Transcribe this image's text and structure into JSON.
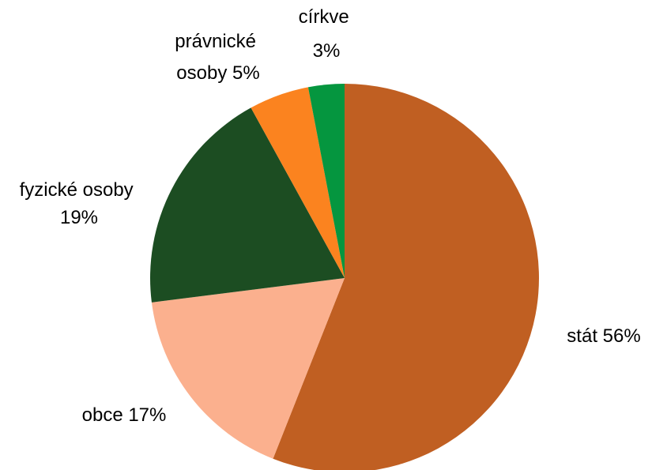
{
  "chart_data": {
    "type": "pie",
    "start_angle_deg": 0,
    "direction": "clockwise",
    "slices": [
      {
        "name": "stát",
        "value": 56,
        "color": "#C05F22",
        "label_lines": [
          "stát 56%"
        ]
      },
      {
        "name": "obce",
        "value": 17,
        "color": "#FBB08E",
        "label_lines": [
          "obce 17%"
        ]
      },
      {
        "name": "fyzické osoby",
        "value": 19,
        "color": "#1C4D22",
        "label_lines": [
          "fyzické osoby",
          "19%"
        ]
      },
      {
        "name": "právnické osoby",
        "value": 5,
        "color": "#FB831F",
        "label_lines": [
          "právnické",
          "osoby 5%"
        ]
      },
      {
        "name": "církve",
        "value": 3,
        "color": "#05963F",
        "label_lines": [
          "církve",
          "3%"
        ]
      }
    ],
    "legend": "none"
  }
}
